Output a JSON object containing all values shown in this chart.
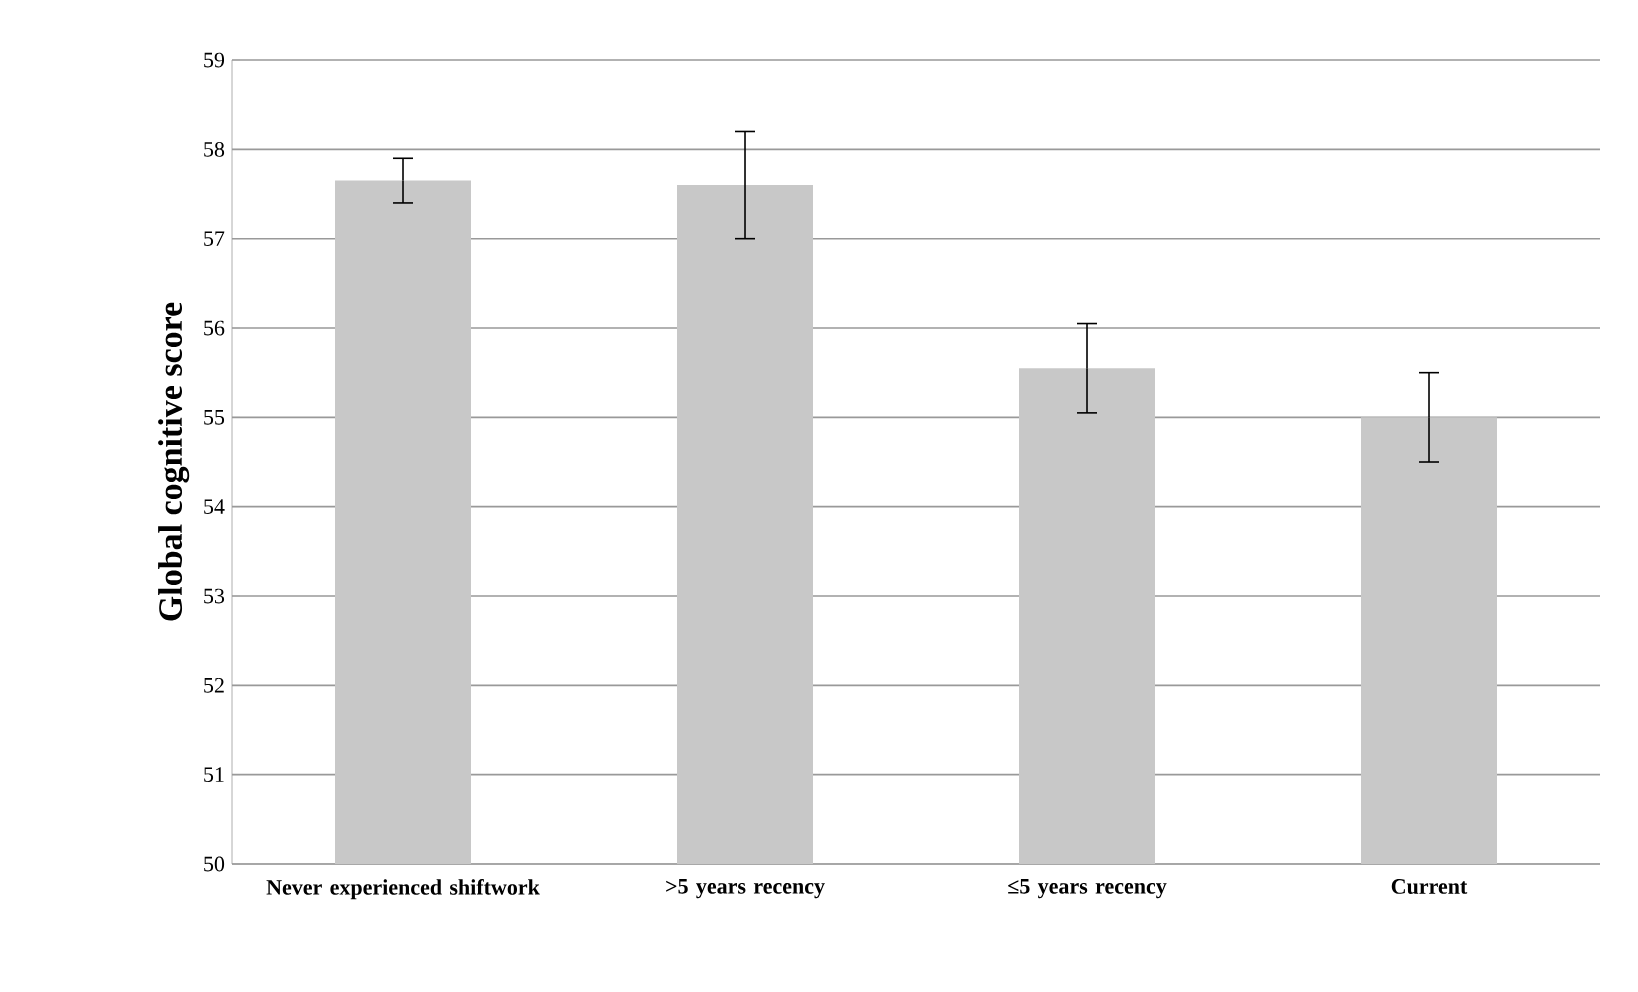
{
  "chart_data": {
    "type": "bar",
    "ylabel": "Global cognitive score",
    "categories": [
      "Never experienced shiftwork",
      ">5 years recency",
      "≤5 years recency",
      "Current"
    ],
    "values": [
      57.65,
      57.6,
      55.55,
      55.0
    ],
    "errors": [
      0.25,
      0.6,
      0.5,
      0.5
    ],
    "color": "#c8c8c8",
    "ylim": [
      50,
      59
    ],
    "yticks": [
      50,
      51,
      52,
      53,
      54,
      55,
      56,
      57,
      58,
      59
    ],
    "grid": "y"
  }
}
